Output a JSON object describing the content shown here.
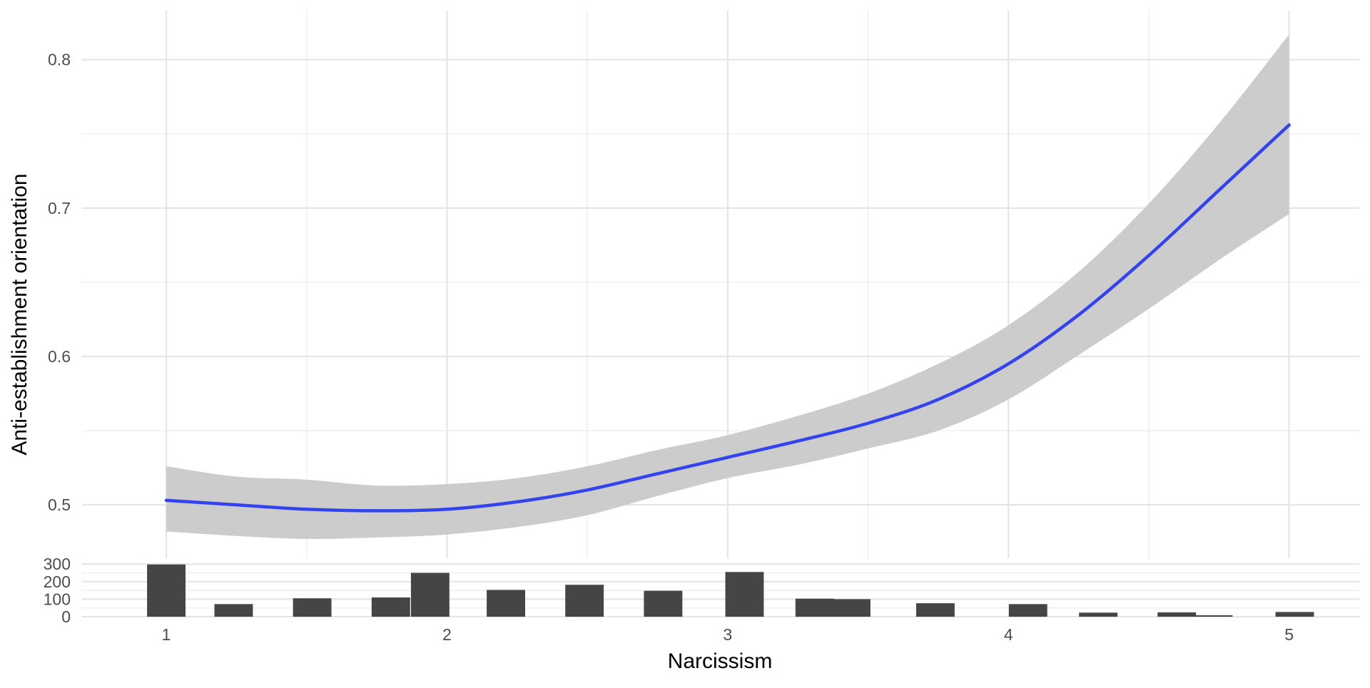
{
  "chart_data": [
    {
      "type": "line",
      "title": "",
      "xlabel": "",
      "ylabel": "Anti-establishment orientation",
      "xlim": [
        0.7,
        5.25
      ],
      "ylim": [
        0.464,
        0.833
      ],
      "x_ticks": [
        1,
        2,
        3,
        4,
        5
      ],
      "y_ticks": [
        "0.5",
        "0.6",
        "0.7",
        "0.8"
      ],
      "grid": true,
      "colors": {
        "line": "#3344ee",
        "ribbon": "#cccccc",
        "grid": "#e5e5e5"
      },
      "series": [
        {
          "x": [
            1.0,
            1.25,
            1.5,
            1.75,
            2.0,
            2.25,
            2.5,
            2.75,
            3.0,
            3.25,
            3.5,
            3.75,
            4.0,
            4.25,
            4.5,
            4.75,
            5.0
          ],
          "y": [
            0.503,
            0.5,
            0.497,
            0.496,
            0.497,
            0.502,
            0.51,
            0.521,
            0.532,
            0.543,
            0.555,
            0.571,
            0.595,
            0.628,
            0.668,
            0.712,
            0.756
          ],
          "lower": [
            0.482,
            0.479,
            0.477,
            0.478,
            0.48,
            0.485,
            0.493,
            0.506,
            0.518,
            0.527,
            0.538,
            0.55,
            0.571,
            0.601,
            0.632,
            0.665,
            0.696
          ],
          "upper": [
            0.526,
            0.519,
            0.517,
            0.513,
            0.514,
            0.518,
            0.526,
            0.537,
            0.547,
            0.56,
            0.575,
            0.595,
            0.621,
            0.657,
            0.703,
            0.757,
            0.817
          ]
        }
      ]
    },
    {
      "type": "bar",
      "title": "",
      "xlabel": "Narcissism",
      "ylabel": "",
      "xlim": [
        0.7,
        5.25
      ],
      "ylim": [
        0,
        305
      ],
      "x_ticks": [
        1,
        2,
        3,
        4,
        5
      ],
      "y_ticks": [
        "0",
        "100",
        "200",
        "300"
      ],
      "grid": true,
      "bar_width": 0.137,
      "colors": {
        "bar": "#454545"
      },
      "x": [
        1.0,
        1.24,
        1.52,
        1.8,
        1.94,
        2.21,
        2.49,
        2.77,
        3.06,
        3.31,
        3.44,
        3.74,
        4.07,
        4.32,
        4.6,
        4.73,
        5.02
      ],
      "values": [
        298,
        72,
        105,
        110,
        250,
        153,
        182,
        148,
        255,
        103,
        100,
        77,
        72,
        23,
        25,
        8,
        27
      ]
    }
  ]
}
